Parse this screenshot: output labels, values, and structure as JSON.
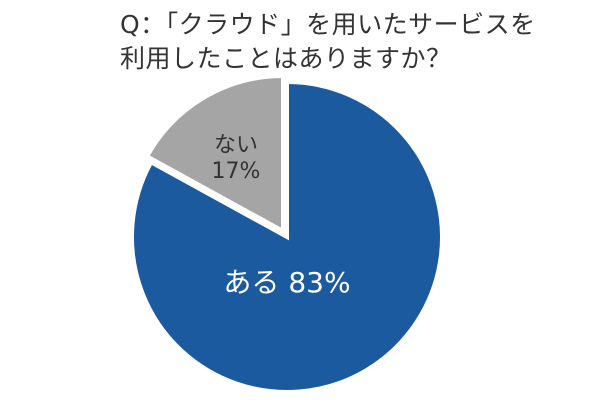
{
  "question": {
    "line1": "Q：「クラウド」を用いたサービスを",
    "line2": "利用したことはありますか？"
  },
  "colors": {
    "aru": "#1b5a9e",
    "nai": "#a5a5a5",
    "outline": "#ffffff",
    "label_light": "#ffffff",
    "label_dark": "#333333"
  },
  "chart_data": {
    "type": "pie",
    "title": "Q：「クラウド」を用いたサービスを利用したことはありますか？",
    "slices": [
      {
        "label": "ある",
        "value": 83,
        "display": "ある 83%"
      },
      {
        "label": "ない",
        "value": 17,
        "display_line1": "ない",
        "display_line2": "17%"
      }
    ]
  }
}
